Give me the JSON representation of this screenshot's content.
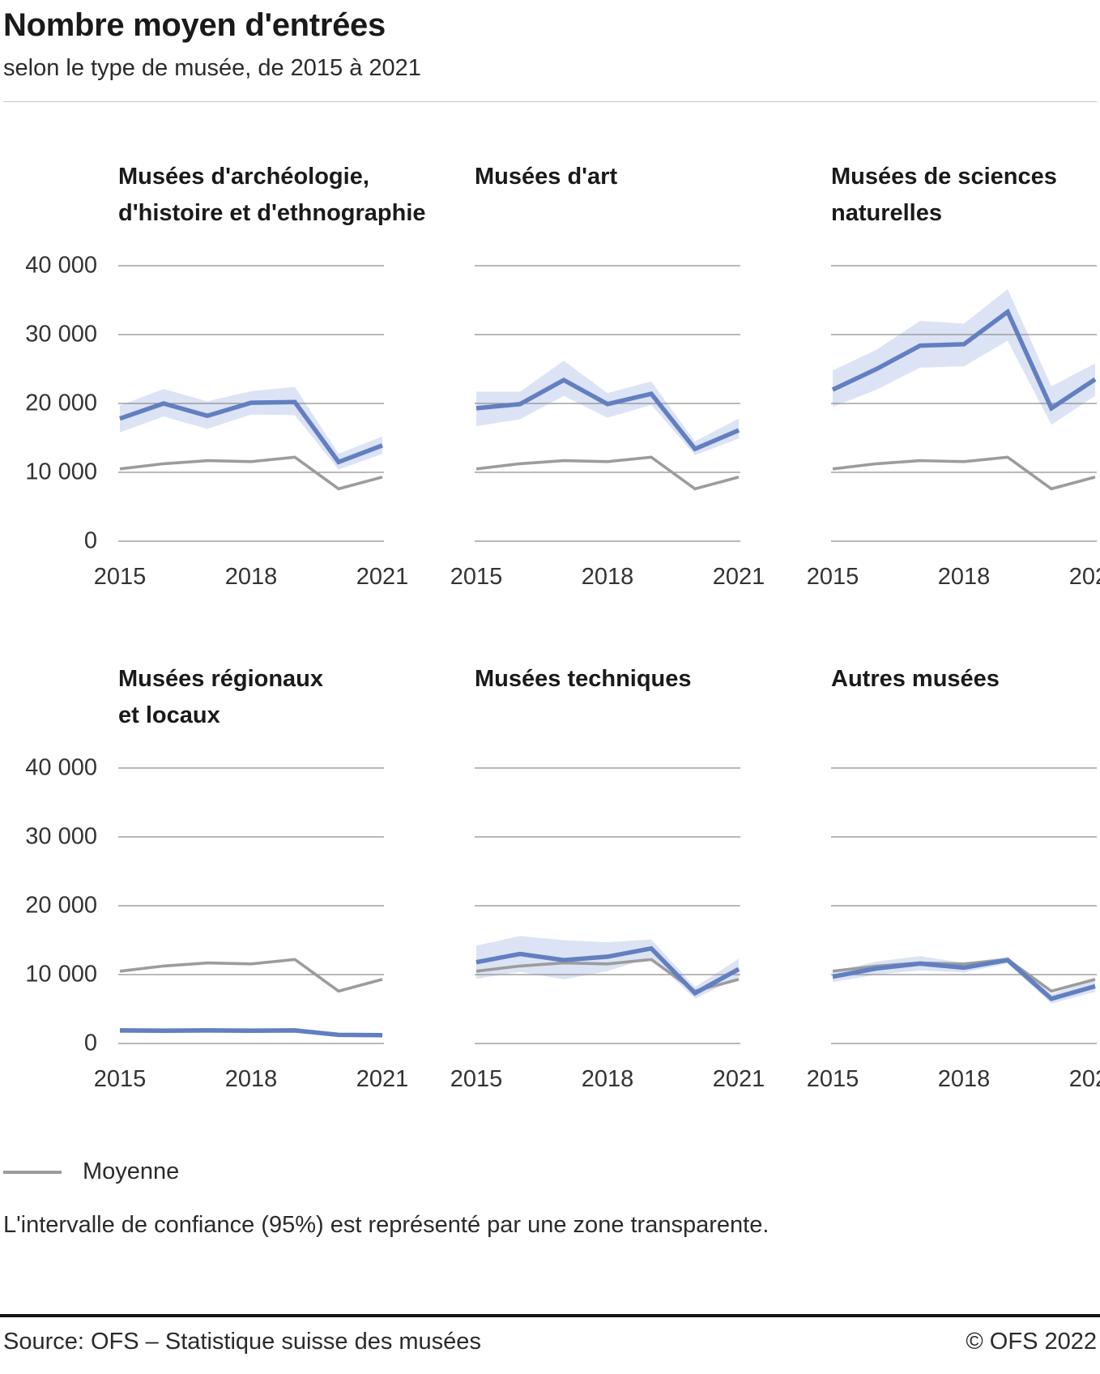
{
  "header": {
    "title": "Nombre moyen d'entrées",
    "subtitle": "selon le type de musée, de 2015 à 2021"
  },
  "legend": {
    "moyenne_label": "Moyenne"
  },
  "note": "L'intervalle de confiance (95%) est représenté par une zone transparente.",
  "footer": {
    "source": "Source: OFS – Statistique suisse des musées",
    "copyright": "© OFS 2022"
  },
  "colors": {
    "series_blue": "#617fc1",
    "ci_band": "#dce3f4",
    "moyenne_gray": "#9c9c9c",
    "gridline": "#8f8f8f",
    "text_dark": "#1a1a1a"
  },
  "chart_data": {
    "type": "line",
    "x": [
      2015,
      2016,
      2017,
      2018,
      2019,
      2020,
      2021
    ],
    "x_tick_labels": [
      "2015",
      "2018",
      "2021"
    ],
    "ylim": [
      0,
      40000
    ],
    "grid": true,
    "y_ticks": [
      {
        "value": 40000,
        "label": "40 000"
      },
      {
        "value": 30000,
        "label": "30 000"
      },
      {
        "value": 20000,
        "label": "20 000"
      },
      {
        "value": 10000,
        "label": "10 000"
      },
      {
        "value": 0,
        "label": "0"
      }
    ],
    "confidence_note": "Intervalle de confiance à 95% représenté par une zone transparente",
    "moyenne": [
      10500,
      11250,
      11700,
      11550,
      12200,
      7600,
      9300
    ],
    "panels": [
      {
        "title": "Musées d'archéologie, d'histoire et d'ethnographie",
        "title_lines": [
          "Musées d'archéologie,",
          "d'histoire et d'ethnographie"
        ],
        "values": [
          17800,
          20000,
          18200,
          20100,
          20200,
          11500,
          13900
        ],
        "ci_upper": [
          19700,
          22100,
          20300,
          21800,
          22400,
          12700,
          15200
        ],
        "ci_lower": [
          15800,
          18100,
          16300,
          18400,
          18300,
          10400,
          12700
        ]
      },
      {
        "title": "Musées d'art",
        "title_lines": [
          "Musées d'art"
        ],
        "values": [
          19300,
          19900,
          23400,
          19900,
          21400,
          13400,
          16100
        ],
        "ci_upper": [
          21700,
          21700,
          26200,
          21500,
          23200,
          14500,
          17800
        ],
        "ci_lower": [
          16700,
          17700,
          21100,
          17900,
          19800,
          12500,
          14900
        ]
      },
      {
        "title": "Musées de sciences naturelles",
        "title_lines": [
          "Musées de sciences",
          "naturelles"
        ],
        "values": [
          22000,
          25000,
          28400,
          28600,
          33300,
          19300,
          23500
        ],
        "ci_upper": [
          24800,
          27800,
          32000,
          31600,
          36600,
          22500,
          25800
        ],
        "ci_lower": [
          19500,
          22000,
          25200,
          25400,
          29100,
          16900,
          21100
        ]
      },
      {
        "title": "Musées régionaux et locaux",
        "title_lines": [
          "Musées régionaux",
          "et locaux"
        ],
        "values": [
          1900,
          1850,
          1900,
          1850,
          1900,
          1250,
          1200
        ],
        "ci_upper": [
          2250,
          2200,
          2250,
          2200,
          2250,
          1550,
          1500
        ],
        "ci_lower": [
          1550,
          1500,
          1550,
          1500,
          1550,
          950,
          900
        ]
      },
      {
        "title": "Musées techniques",
        "title_lines": [
          "Musées techniques"
        ],
        "values": [
          11800,
          13000,
          12100,
          12600,
          13800,
          7300,
          10800
        ],
        "ci_upper": [
          14200,
          15600,
          15000,
          14700,
          15100,
          8200,
          12300
        ],
        "ci_lower": [
          9400,
          10400,
          9300,
          10500,
          12500,
          6500,
          9600
        ]
      },
      {
        "title": "Autres musées",
        "title_lines": [
          "Autres musées"
        ],
        "values": [
          9700,
          10900,
          11600,
          11000,
          12100,
          6500,
          8300
        ],
        "ci_upper": [
          10400,
          11900,
          12700,
          11700,
          12600,
          7200,
          9200
        ],
        "ci_lower": [
          8900,
          10000,
          10600,
          10300,
          11600,
          5800,
          7500
        ]
      }
    ]
  }
}
